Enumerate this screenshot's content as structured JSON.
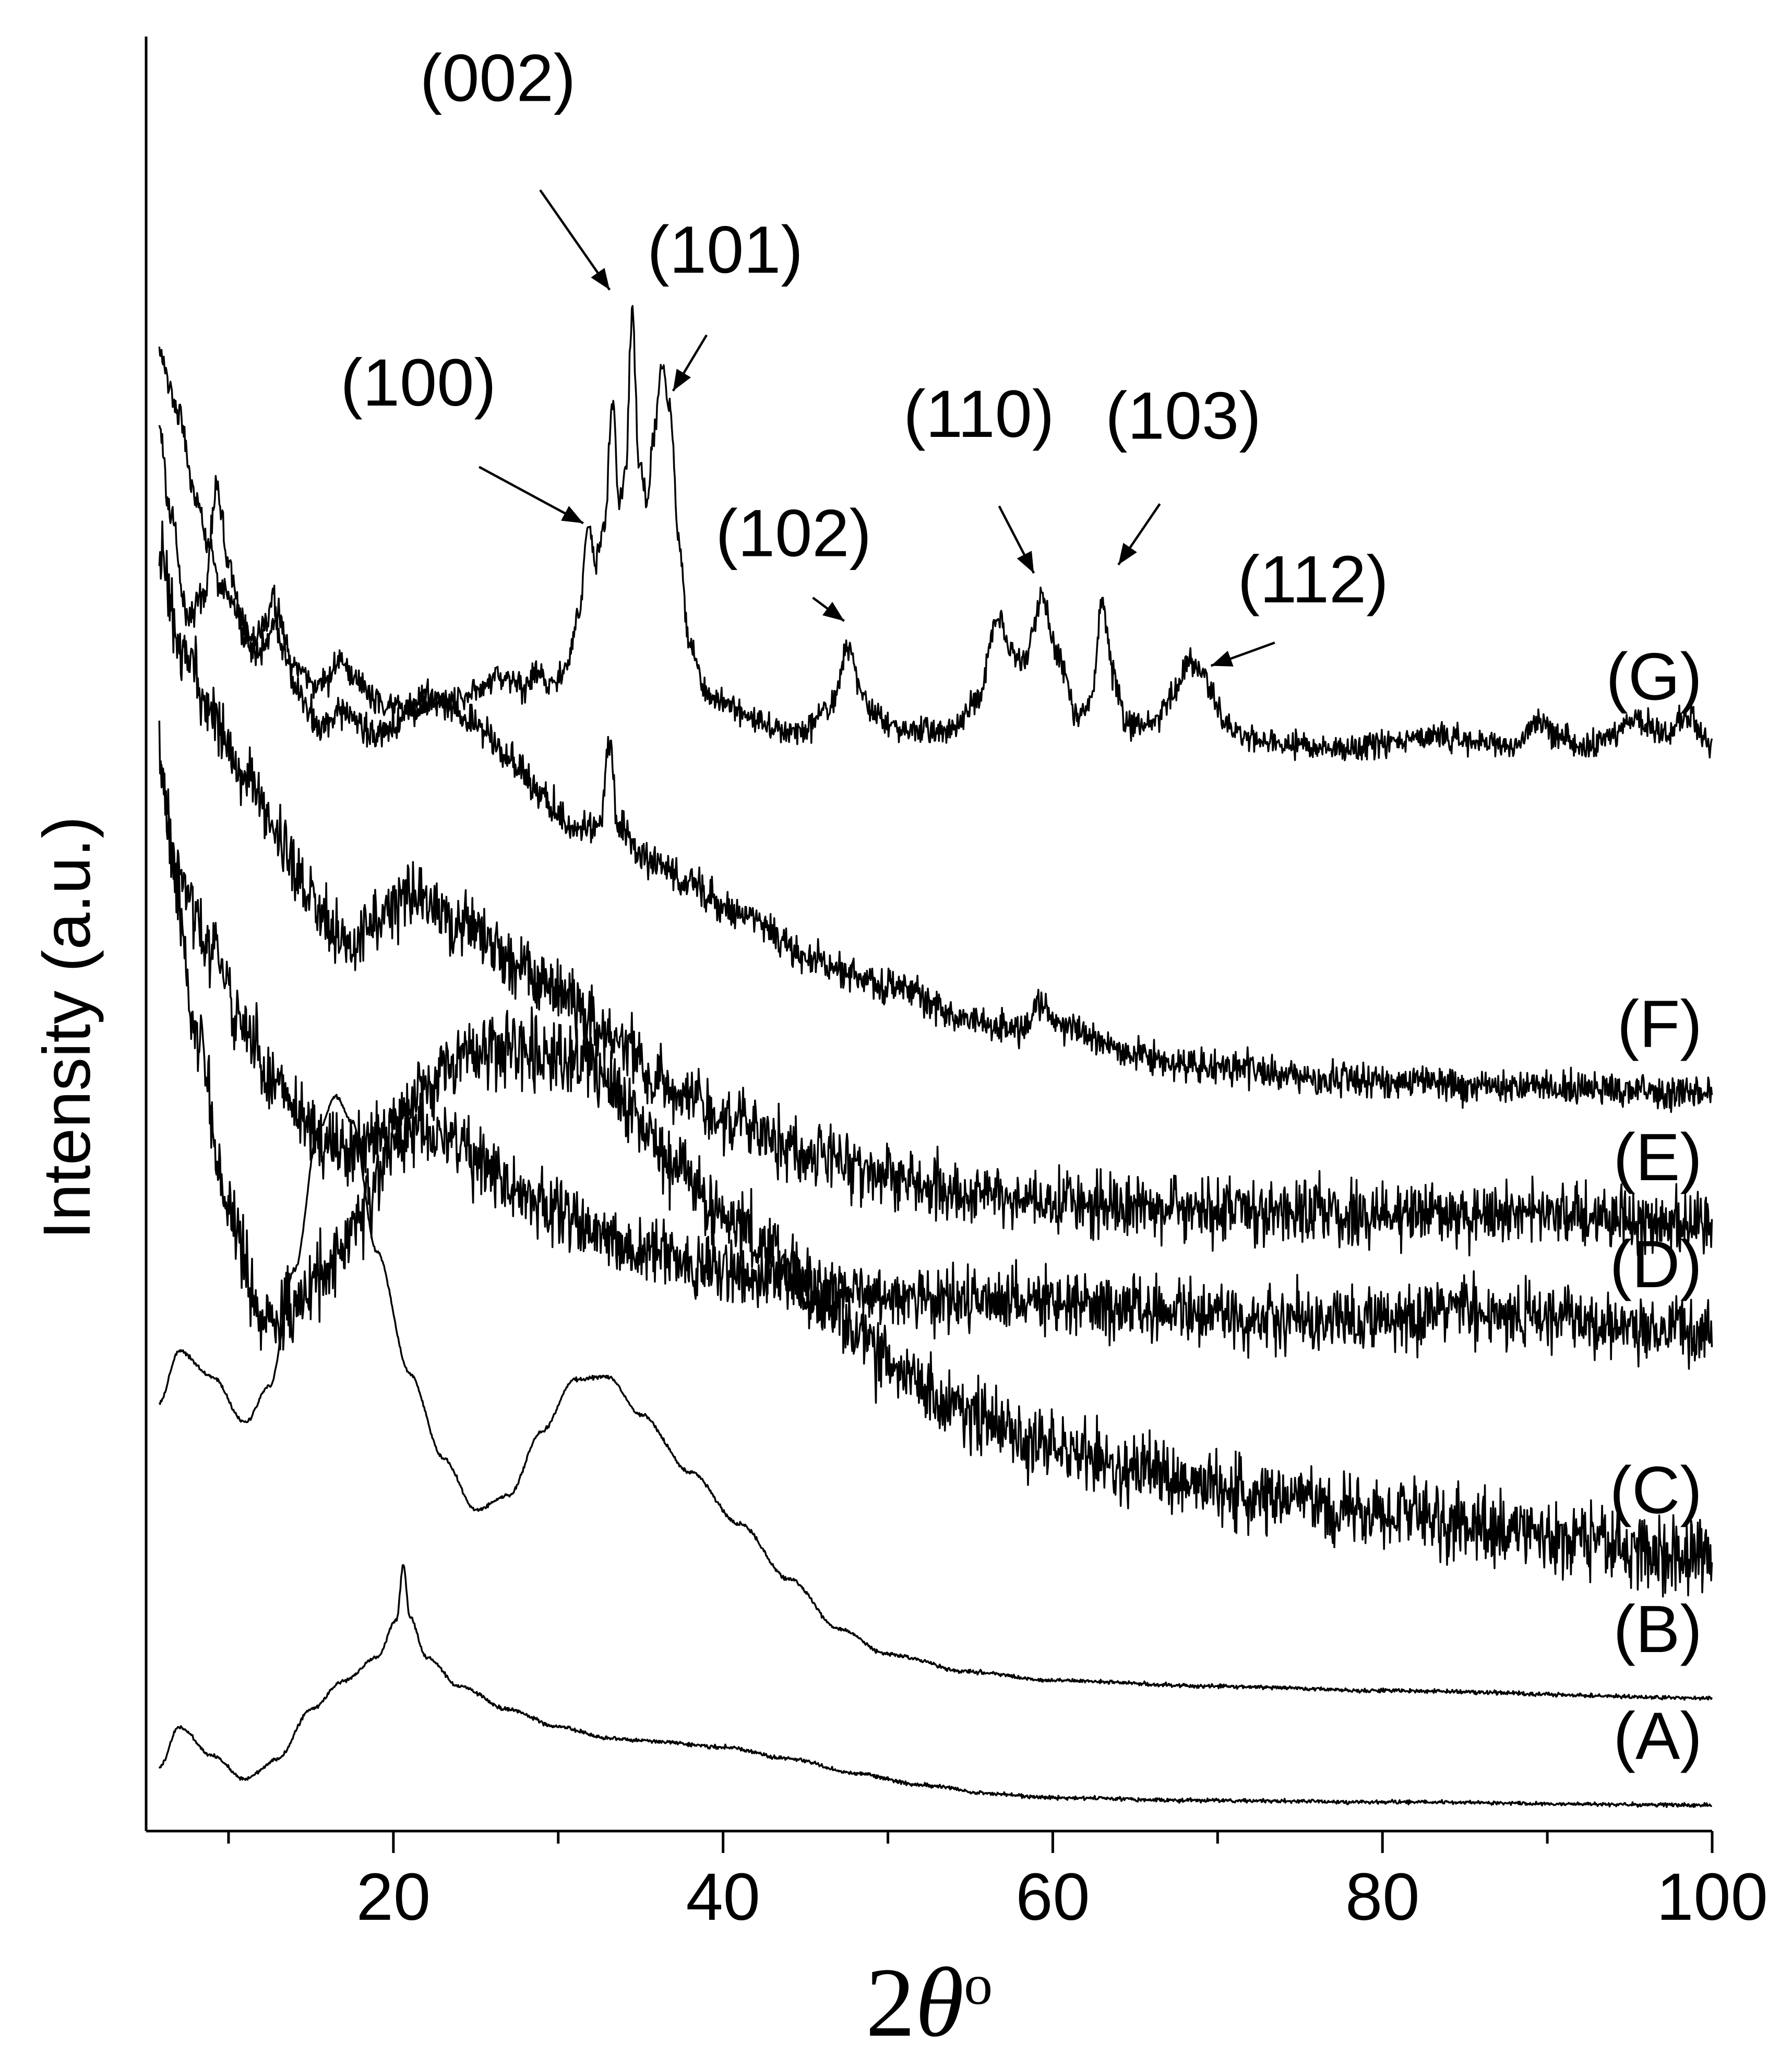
{
  "chart_data": {
    "type": "line",
    "title": "",
    "xlabel": "2θ°",
    "xlabel_parts": {
      "num": "2",
      "theta": "θ",
      "deg": "o"
    },
    "ylabel": "Intensity (a.u.)",
    "xlim": [
      5,
      100
    ],
    "x_major_ticks": [
      20,
      40,
      60,
      80,
      100
    ],
    "x_minor_ticks": [
      10,
      30,
      50,
      70,
      90
    ],
    "x_tick_labels": [
      "20",
      "40",
      "60",
      "80",
      "100"
    ],
    "y_ticks": "none",
    "grid": false,
    "legend": "none",
    "series": [
      {
        "name": "(A)",
        "offset": 0,
        "noise": 0.05,
        "points": [
          [
            5.8,
            1.2
          ],
          [
            7,
            2.6
          ],
          [
            9,
            1.6
          ],
          [
            11,
            0.8
          ],
          [
            13,
            1.5
          ],
          [
            15,
            3.2
          ],
          [
            17,
            4.2
          ],
          [
            19,
            5.0
          ],
          [
            20.2,
            6.3
          ],
          [
            20.6,
            8.2
          ],
          [
            21,
            6.4
          ],
          [
            22,
            5.0
          ],
          [
            24,
            4.0
          ],
          [
            27,
            3.2
          ],
          [
            30,
            2.6
          ],
          [
            33,
            2.2
          ],
          [
            36,
            2.1
          ],
          [
            40,
            1.9
          ],
          [
            44,
            1.5
          ],
          [
            48,
            1.0
          ],
          [
            52,
            0.6
          ],
          [
            56,
            0.3
          ],
          [
            60,
            0.15
          ],
          [
            70,
            0.05
          ],
          [
            80,
            0.0
          ],
          [
            100,
            -0.1
          ]
        ]
      },
      {
        "name": "(B)",
        "offset": 3.8,
        "noise": 0.05,
        "points": [
          [
            5.8,
            10
          ],
          [
            7,
            11.8
          ],
          [
            9,
            10.9
          ],
          [
            11,
            9.3
          ],
          [
            12.5,
            10.6
          ],
          [
            14,
            14.6
          ],
          [
            15.5,
            19.5
          ],
          [
            16.5,
            20.6
          ],
          [
            17.5,
            19.7
          ],
          [
            19,
            15.2
          ],
          [
            21,
            11
          ],
          [
            23,
            8.1
          ],
          [
            25,
            6.3
          ],
          [
            27,
            6.8
          ],
          [
            29,
            9.0
          ],
          [
            31,
            10.8
          ],
          [
            33,
            10.9
          ],
          [
            35,
            9.6
          ],
          [
            38,
            7.6
          ],
          [
            41,
            5.8
          ],
          [
            44,
            3.9
          ],
          [
            47,
            2.2
          ],
          [
            50,
            1.3
          ],
          [
            55,
            0.7
          ],
          [
            60,
            0.4
          ],
          [
            70,
            0.2
          ],
          [
            80,
            0.05
          ],
          [
            100,
            -0.2
          ]
        ]
      },
      {
        "name": "(C)",
        "offset": 8.6,
        "noise": 0.95,
        "points": [
          [
            5.8,
            28
          ],
          [
            6.5,
            24
          ],
          [
            8,
            18
          ],
          [
            10,
            12
          ],
          [
            12,
            8
          ],
          [
            14,
            8.5
          ],
          [
            16,
            9.8
          ],
          [
            18,
            11.5
          ],
          [
            20,
            14
          ],
          [
            22,
            16.2
          ],
          [
            24,
            17.2
          ],
          [
            27,
            17.6
          ],
          [
            30,
            17.2
          ],
          [
            32,
            17
          ],
          [
            34,
            15.5
          ],
          [
            37,
            13.5
          ],
          [
            40,
            11.7
          ],
          [
            43,
            10.3
          ],
          [
            46,
            8.5
          ],
          [
            50,
            6.6
          ],
          [
            55,
            4.8
          ],
          [
            60,
            3.6
          ],
          [
            65,
            2.9
          ],
          [
            70,
            2.2
          ],
          [
            80,
            1.4
          ],
          [
            90,
            0.6
          ],
          [
            100,
            -0.2
          ]
        ]
      },
      {
        "name": "(D)",
        "offset": 16.5,
        "noise": 0.85,
        "points": [
          [
            5.8,
            19
          ],
          [
            7,
            15.5
          ],
          [
            9,
            13
          ],
          [
            11,
            10.2
          ],
          [
            13,
            8.2
          ],
          [
            15,
            6.6
          ],
          [
            17,
            6.0
          ],
          [
            19,
            6.5
          ],
          [
            20.5,
            7.1
          ],
          [
            23,
            6.5
          ],
          [
            26,
            5.2
          ],
          [
            30,
            3.9
          ],
          [
            35,
            2.6
          ],
          [
            40,
            1.8
          ],
          [
            45,
            1.4
          ],
          [
            50,
            1.1
          ],
          [
            55,
            0.8
          ],
          [
            60,
            0.8
          ],
          [
            65,
            0.5
          ],
          [
            70,
            0.3
          ],
          [
            75,
            0.2
          ],
          [
            80,
            0.2
          ],
          [
            85,
            0.5
          ],
          [
            90,
            0.3
          ],
          [
            95,
            0.0
          ],
          [
            100,
            -0.3
          ]
        ]
      },
      {
        "name": "(E)",
        "offset": 20.0,
        "noise": 0.85,
        "points": [
          [
            5.8,
            23
          ],
          [
            7,
            20
          ],
          [
            9,
            17.6
          ],
          [
            11,
            15.4
          ],
          [
            13,
            13.4
          ],
          [
            15,
            11.0
          ],
          [
            17,
            9.6
          ],
          [
            19,
            10.5
          ],
          [
            21,
            11.3
          ],
          [
            24,
            10.3
          ],
          [
            27,
            9.1
          ],
          [
            30,
            8.0
          ],
          [
            33,
            6.6
          ],
          [
            36,
            5.0
          ],
          [
            40,
            3.6
          ],
          [
            45,
            2.5
          ],
          [
            50,
            1.6
          ],
          [
            55,
            1.0
          ],
          [
            60,
            0.8
          ],
          [
            70,
            0.4
          ],
          [
            80,
            0.3
          ],
          [
            90,
            0.3
          ],
          [
            100,
            -0.1
          ]
        ]
      },
      {
        "name": "(F)",
        "offset": 24.4,
        "noise": 0.45,
        "points": [
          [
            5.8,
            23
          ],
          [
            6.5,
            20
          ],
          [
            7.5,
            16.5
          ],
          [
            8.5,
            17.2
          ],
          [
            9.3,
            21.0
          ],
          [
            10,
            18.5
          ],
          [
            11,
            15.7
          ],
          [
            12,
            15.3
          ],
          [
            13,
            16.6
          ],
          [
            14,
            14.2
          ],
          [
            15.5,
            12.7
          ],
          [
            17,
            13.3
          ],
          [
            19,
            12.4
          ],
          [
            21,
            13.2
          ],
          [
            23,
            13.6
          ],
          [
            25,
            12.8
          ],
          [
            27,
            11.7
          ],
          [
            29,
            10.4
          ],
          [
            31,
            9.2
          ],
          [
            32.5,
            9.3
          ],
          [
            33.1,
            12.3
          ],
          [
            33.6,
            9.5
          ],
          [
            35,
            8.3
          ],
          [
            38,
            7.3
          ],
          [
            41,
            6.3
          ],
          [
            45,
            4.8
          ],
          [
            50,
            3.8
          ],
          [
            55,
            2.6
          ],
          [
            58,
            2.3
          ],
          [
            59.3,
            3.1
          ],
          [
            60.5,
            2.4
          ],
          [
            65,
            1.4
          ],
          [
            70,
            1.0
          ],
          [
            75,
            0.7
          ],
          [
            80,
            0.5
          ],
          [
            90,
            0.3
          ],
          [
            100,
            0.1
          ]
        ]
      },
      {
        "name": "(G)",
        "offset": 33.9,
        "noise": 0.35,
        "points": [
          [
            5.8,
            16
          ],
          [
            7,
            14
          ],
          [
            8,
            11
          ],
          [
            8.8,
            9.6
          ],
          [
            9.5,
            8
          ],
          [
            10.5,
            7.2
          ],
          [
            11.5,
            6.2
          ],
          [
            12.3,
            6.9
          ],
          [
            12.7,
            7.8
          ],
          [
            13.2,
            6.0
          ],
          [
            14,
            5.3
          ],
          [
            15,
            4.7
          ],
          [
            16,
            4.8
          ],
          [
            16.8,
            5.7
          ],
          [
            17.5,
            4.9
          ],
          [
            19,
            4.2
          ],
          [
            21,
            3.9
          ],
          [
            22,
            4.4
          ],
          [
            23,
            4.0
          ],
          [
            25,
            4.5
          ],
          [
            26.5,
            5.0
          ],
          [
            28,
            4.6
          ],
          [
            28.7,
            5.2
          ],
          [
            29.5,
            4.6
          ],
          [
            30.5,
            5.3
          ],
          [
            31.3,
            7.3
          ],
          [
            31.8,
            10.2
          ],
          [
            32.3,
            8.9
          ],
          [
            32.8,
            10.2
          ],
          [
            33.3,
            14.6
          ],
          [
            33.7,
            11.0
          ],
          [
            34.1,
            12.3
          ],
          [
            34.5,
            17.7
          ],
          [
            34.9,
            12.3
          ],
          [
            35.4,
            11.0
          ],
          [
            35.8,
            13.2
          ],
          [
            36.3,
            15.8
          ],
          [
            36.8,
            14.1
          ],
          [
            37.3,
            9.5
          ],
          [
            38,
            6.0
          ],
          [
            39,
            4.3
          ],
          [
            41,
            3.8
          ],
          [
            43,
            3.2
          ],
          [
            45,
            3.1
          ],
          [
            46.5,
            3.9
          ],
          [
            47.6,
            6.0
          ],
          [
            48.6,
            4.1
          ],
          [
            50,
            3.3
          ],
          [
            52,
            3.1
          ],
          [
            54,
            3.1
          ],
          [
            55.5,
            4.3
          ],
          [
            56.6,
            7.0
          ],
          [
            57.6,
            5.8
          ],
          [
            58.2,
            5.4
          ],
          [
            59.3,
            7.6
          ],
          [
            60.3,
            5.7
          ],
          [
            61.5,
            3.6
          ],
          [
            62.3,
            4.1
          ],
          [
            63,
            7.5
          ],
          [
            63.7,
            5.0
          ],
          [
            64.5,
            3.4
          ],
          [
            66,
            3.4
          ],
          [
            67.5,
            4.5
          ],
          [
            68.2,
            5.5
          ],
          [
            69.2,
            5.0
          ],
          [
            70.5,
            3.3
          ],
          [
            72,
            2.8
          ],
          [
            75,
            2.6
          ],
          [
            78,
            2.5
          ],
          [
            81,
            2.8
          ],
          [
            84,
            2.9
          ],
          [
            86,
            2.7
          ],
          [
            88,
            2.6
          ],
          [
            89.5,
            3.5
          ],
          [
            90.5,
            3.0
          ],
          [
            92,
            2.5
          ],
          [
            94,
            3.0
          ],
          [
            95.5,
            3.6
          ],
          [
            97,
            3.0
          ],
          [
            98.5,
            3.7
          ],
          [
            100,
            2.6
          ]
        ]
      }
    ],
    "annotations": [
      {
        "label": "(100)",
        "target_x": 31.8,
        "target_y": 44.1
      },
      {
        "label": "(002)",
        "target_x": 33.3,
        "target_y": 52.1
      },
      {
        "label": "(101)",
        "target_x": 36.8,
        "target_y": 48.6
      },
      {
        "label": "(102)",
        "target_x": 47.6,
        "target_y": 40.7
      },
      {
        "label": "(110)",
        "target_x": 59.0,
        "target_y": 42.3
      },
      {
        "label": "(103)",
        "target_x": 63.8,
        "target_y": 42.6
      },
      {
        "label": "(112)",
        "target_x": 69.3,
        "target_y": 39.2
      }
    ]
  }
}
